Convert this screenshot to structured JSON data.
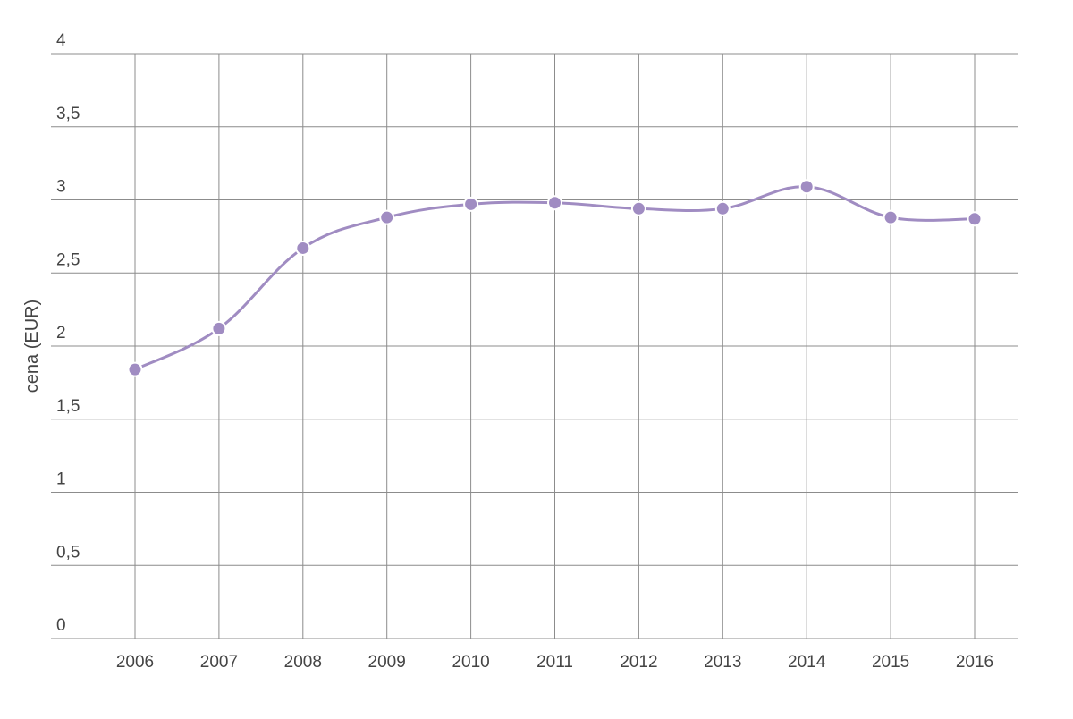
{
  "colors": {
    "series": "#a08cc2",
    "grid": "#8c8c8c",
    "text": "#444444"
  },
  "chart_data": {
    "type": "line",
    "title": "",
    "xlabel": "",
    "ylabel": "cena (EUR)",
    "categories": [
      "2006",
      "2007",
      "2008",
      "2009",
      "2010",
      "2011",
      "2012",
      "2013",
      "2014",
      "2015",
      "2016"
    ],
    "series": [
      {
        "values": [
          1.84,
          2.12,
          2.67,
          2.88,
          2.97,
          2.98,
          2.94,
          2.94,
          3.09,
          2.88,
          2.87
        ]
      }
    ],
    "ylim": [
      0,
      4
    ],
    "yticks": [
      0,
      0.5,
      1,
      1.5,
      2,
      2.5,
      3,
      3.5,
      4
    ],
    "ytick_labels": [
      "0",
      "0,5",
      "1",
      "1,5",
      "2",
      "2,5",
      "3",
      "3,5",
      "4"
    ],
    "grid": true,
    "markers": true
  }
}
